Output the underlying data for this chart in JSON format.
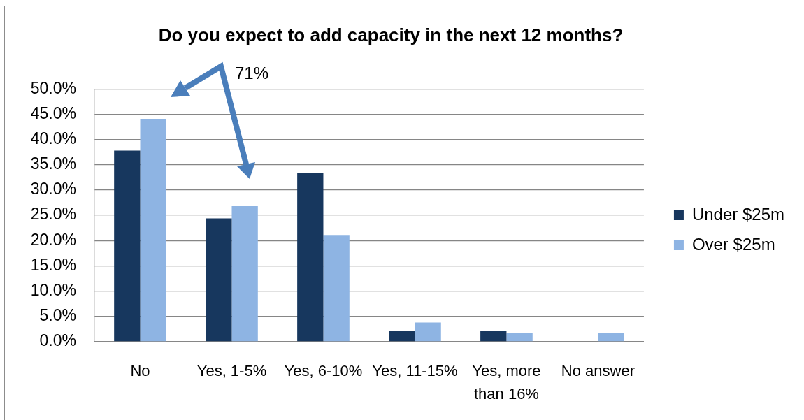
{
  "chart_data": {
    "type": "bar",
    "title": "Do you expect to add capacity in the next 12 months?",
    "categories": [
      "No",
      "Yes, 1-5%",
      "Yes, 6-10%",
      "Yes, 11-15%",
      "Yes, more than 16%",
      "No answer"
    ],
    "series": [
      {
        "name": "Under $25m",
        "color": "#17375e",
        "values": [
          37.8,
          24.4,
          33.3,
          2.2,
          2.2,
          0
        ]
      },
      {
        "name": "Over $25m",
        "color": "#8eb4e3",
        "values": [
          44.1,
          26.8,
          21.1,
          3.8,
          1.8,
          1.8
        ]
      }
    ],
    "ylim": [
      0,
      50
    ],
    "yticks": [
      {
        "value": 0,
        "label": "0.0%"
      },
      {
        "value": 5,
        "label": "5.0%"
      },
      {
        "value": 10,
        "label": "10.0%"
      },
      {
        "value": 15,
        "label": "15.0%"
      },
      {
        "value": 20,
        "label": "20.0%"
      },
      {
        "value": 25,
        "label": "25.0%"
      },
      {
        "value": 30,
        "label": "30.0%"
      },
      {
        "value": 35,
        "label": "35.0%"
      },
      {
        "value": 40,
        "label": "40.0%"
      },
      {
        "value": 45,
        "label": "45.0%"
      },
      {
        "value": 50,
        "label": "50.0%"
      }
    ],
    "grid": "y",
    "legend": "right",
    "annotations": [
      "71%"
    ]
  }
}
